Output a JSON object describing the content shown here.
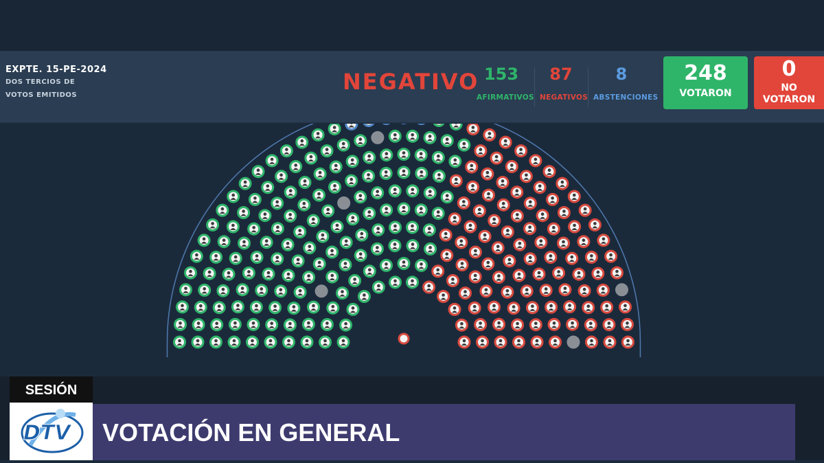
{
  "header": {
    "expediente": "EXPTE. 15-PE-2024",
    "subtitle_line1": "DOS TERCIOS DE",
    "subtitle_line2": "VOTOS EMITIDOS",
    "result": "NEGATIVO",
    "afirmativos": {
      "value": "153",
      "label": "AFIRMATIVOS"
    },
    "negativos": {
      "value": "87",
      "label": "NEGATIVOS"
    },
    "abstenciones": {
      "value": "8",
      "label": "ABSTENCIONES"
    },
    "votaron": {
      "value": "248",
      "label": "VOTARON"
    },
    "no_votaron": {
      "value": "0",
      "label_line1": "NO",
      "label_line2": "VOTARON"
    }
  },
  "chamber": {
    "colors": {
      "afirmativo": "#2fb56a",
      "negativo": "#d84a3e",
      "abstencion": "#4f86c6",
      "vacante": "#8a8f96"
    }
  },
  "footer": {
    "tag": "SESIÓN",
    "logo_text": "DTV",
    "title": "VOTACIÓN EN GENERAL"
  },
  "colors": {
    "green": "#2fb56a",
    "red": "#e2453a",
    "blue": "#5b9be0",
    "header_bg": "#2a3d52",
    "page_bg": "#1b2a3b",
    "title_bar": "#3d3b6e"
  }
}
